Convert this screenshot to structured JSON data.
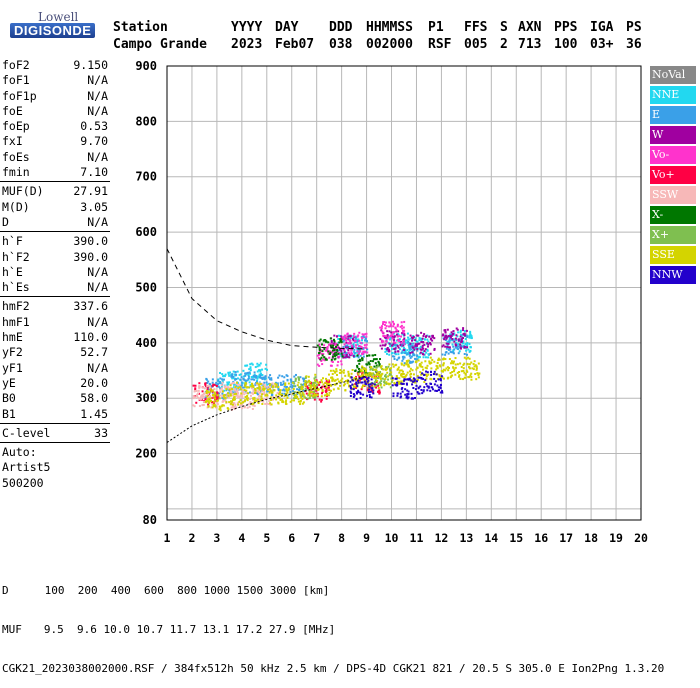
{
  "logo": {
    "top": "Lowell",
    "bottom": "DIGISONDE"
  },
  "header": {
    "labels": [
      "Station",
      "YYYY",
      "DAY",
      "DDD",
      "HHMMSS",
      "P1",
      "FFS",
      "S",
      "AXN",
      "PPS",
      "IGA",
      "PS"
    ],
    "values": [
      "Campo Grande",
      "2023",
      "Feb07",
      "038",
      "002000",
      "RSF",
      "005",
      "2",
      "713",
      "100",
      "03+",
      "36"
    ]
  },
  "params": {
    "g1": [
      {
        "label": "foF2",
        "value": "9.150"
      },
      {
        "label": "foF1",
        "value": "N/A"
      },
      {
        "label": "foF1p",
        "value": "N/A"
      },
      {
        "label": "foE",
        "value": "N/A"
      },
      {
        "label": "foEp",
        "value": "0.53"
      },
      {
        "label": "fxI",
        "value": "9.70"
      },
      {
        "label": "foEs",
        "value": "N/A"
      },
      {
        "label": "fmin",
        "value": "7.10"
      }
    ],
    "g2": [
      {
        "label": "MUF(D)",
        "value": "27.91"
      },
      {
        "label": "M(D)",
        "value": "3.05"
      },
      {
        "label": "D",
        "value": "N/A"
      }
    ],
    "g3": [
      {
        "label": "h`F",
        "value": "390.0"
      },
      {
        "label": "h`F2",
        "value": "390.0"
      },
      {
        "label": "h`E",
        "value": "N/A"
      },
      {
        "label": "h`Es",
        "value": "N/A"
      }
    ],
    "g4": [
      {
        "label": "hmF2",
        "value": "337.6"
      },
      {
        "label": "hmF1",
        "value": "N/A"
      },
      {
        "label": "hmE",
        "value": "110.0"
      },
      {
        "label": "yF2",
        "value": "52.7"
      },
      {
        "label": "yF1",
        "value": "N/A"
      },
      {
        "label": "yE",
        "value": "20.0"
      },
      {
        "label": "B0",
        "value": "58.0"
      },
      {
        "label": "B1",
        "value": "1.45"
      }
    ],
    "g5": [
      {
        "label": "C-level",
        "value": "33"
      }
    ],
    "auto": [
      "Auto:",
      "Artist5",
      "500200"
    ]
  },
  "legend": [
    {
      "label": "NoVal",
      "color": "#888888"
    },
    {
      "label": "NNE",
      "color": "#22d8f0"
    },
    {
      "label": "E",
      "color": "#3aa0e8"
    },
    {
      "label": "W",
      "color": "#a000a0"
    },
    {
      "label": "Vo-",
      "color": "#ff33cc"
    },
    {
      "label": "Vo+",
      "color": "#ff0044"
    },
    {
      "label": "SSW",
      "color": "#f7b8b8"
    },
    {
      "label": "X-",
      "color": "#007700"
    },
    {
      "label": "X+",
      "color": "#7fbf50"
    },
    {
      "label": "SSE",
      "color": "#d4d400"
    },
    {
      "label": "NNW",
      "color": "#2200cc"
    }
  ],
  "chart_data": {
    "type": "scatter",
    "xlabel": "",
    "ylabel": "",
    "xlim": [
      1,
      20
    ],
    "ylim": [
      80,
      900
    ],
    "xticks": [
      1,
      2,
      3,
      4,
      5,
      6,
      7,
      8,
      9,
      10,
      11,
      12,
      13,
      14,
      15,
      16,
      17,
      18,
      19,
      20
    ],
    "yticks": [
      80,
      200,
      300,
      400,
      500,
      600,
      700,
      800,
      900
    ],
    "grid": true,
    "series": [
      {
        "name": "NNE",
        "clusters": [
          [
            3.5,
            330
          ],
          [
            4.5,
            345
          ],
          [
            8.3,
            395
          ],
          [
            10.2,
            400
          ],
          [
            11,
            395
          ],
          [
            12.7,
            405
          ]
        ]
      },
      {
        "name": "E",
        "clusters": [
          [
            3,
            320
          ],
          [
            4,
            330
          ],
          [
            5,
            325
          ],
          [
            6,
            325
          ],
          [
            8.5,
            395
          ],
          [
            10.5,
            385
          ],
          [
            12.5,
            400
          ]
        ]
      },
      {
        "name": "W",
        "clusters": [
          [
            8,
            395
          ],
          [
            10,
            405
          ],
          [
            11.2,
            400
          ],
          [
            12.5,
            410
          ]
        ]
      },
      {
        "name": "Vo-",
        "clusters": [
          [
            7.5,
            380
          ],
          [
            8.5,
            400
          ],
          [
            10,
            420
          ]
        ]
      },
      {
        "name": "Vo+",
        "clusters": [
          [
            2.5,
            310
          ],
          [
            7,
            315
          ],
          [
            9,
            330
          ]
        ]
      },
      {
        "name": "SSW",
        "clusters": [
          [
            2.5,
            305
          ],
          [
            3.5,
            310
          ],
          [
            4,
            300
          ],
          [
            5,
            310
          ]
        ]
      },
      {
        "name": "X-",
        "clusters": [
          [
            7.5,
            390
          ],
          [
            9,
            360
          ]
        ]
      },
      {
        "name": "X+",
        "clusters": [
          [
            6.5,
            320
          ],
          [
            9.5,
            340
          ]
        ]
      },
      {
        "name": "SSE",
        "clusters": [
          [
            3,
            300
          ],
          [
            4,
            310
          ],
          [
            5,
            310
          ],
          [
            6,
            310
          ],
          [
            7,
            325
          ],
          [
            8,
            335
          ],
          [
            9,
            340
          ],
          [
            10,
            345
          ],
          [
            11,
            350
          ],
          [
            12,
            355
          ],
          [
            13,
            355
          ]
        ]
      },
      {
        "name": "NNW",
        "clusters": [
          [
            8.8,
            320
          ],
          [
            10.5,
            320
          ],
          [
            11.5,
            330
          ]
        ]
      }
    ],
    "traces": {
      "dashed_curve": [
        [
          1,
          570
        ],
        [
          2,
          480
        ],
        [
          3,
          440
        ],
        [
          4,
          420
        ],
        [
          5,
          405
        ],
        [
          6,
          395
        ],
        [
          7,
          392
        ],
        [
          8,
          390
        ],
        [
          9,
          389
        ]
      ],
      "lower_curve": [
        [
          1,
          220
        ],
        [
          2,
          250
        ],
        [
          3,
          270
        ],
        [
          4,
          285
        ],
        [
          5,
          298
        ],
        [
          6,
          308
        ],
        [
          7,
          318
        ],
        [
          8,
          328
        ],
        [
          9,
          340
        ]
      ]
    }
  },
  "footer": {
    "d_label": "D",
    "d_values": "100  200  400  600  800 1000 1500 3000 [km]",
    "muf_label": "MUF",
    "muf_values": "9.5  9.6 10.0 10.7 11.7 13.1 17.2 27.9 [MHz]",
    "info": "CGK21_2023038002000.RSF / 384fx512h 50 kHz 2.5 km / DPS-4D CGK21 821 / 20.5 S 305.0 E Ion2Png 1.3.20"
  }
}
